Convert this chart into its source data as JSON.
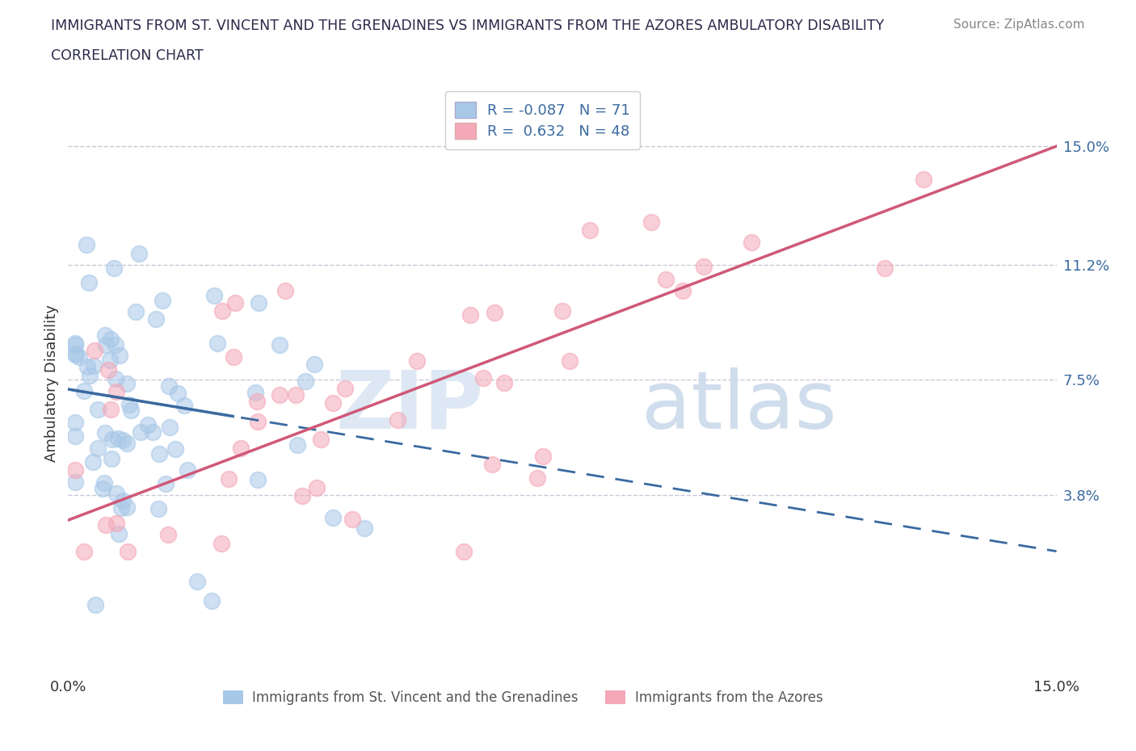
{
  "title_line1": "IMMIGRANTS FROM ST. VINCENT AND THE GRENADINES VS IMMIGRANTS FROM THE AZORES AMBULATORY DISABILITY",
  "title_line2": "CORRELATION CHART",
  "source": "Source: ZipAtlas.com",
  "ylabel": "Ambulatory Disability",
  "xmin": 0.0,
  "xmax": 0.15,
  "ymin": -0.02,
  "ymax": 0.168,
  "yticks": [
    0.038,
    0.075,
    0.112,
    0.15
  ],
  "ytick_labels": [
    "3.8%",
    "7.5%",
    "11.2%",
    "15.0%"
  ],
  "r_blue": -0.087,
  "n_blue": 71,
  "r_pink": 0.632,
  "n_pink": 48,
  "blue_color": "#a8c8e8",
  "pink_color": "#f4a8b8",
  "blue_line_color": "#3a6aa0",
  "pink_line_color": "#d05878",
  "grid_color": "#c8c8d8",
  "title_color": "#2a2a4a",
  "source_color": "#888888",
  "bottom_label_color": "#555555",
  "watermark_zip_color": "#dde8f4",
  "watermark_atlas_color": "#c8d8ea",
  "legend_edge_color": "#cccccc",
  "blue_label": "Immigrants from St. Vincent and the Grenadines",
  "pink_label": "Immigrants from the Azores"
}
